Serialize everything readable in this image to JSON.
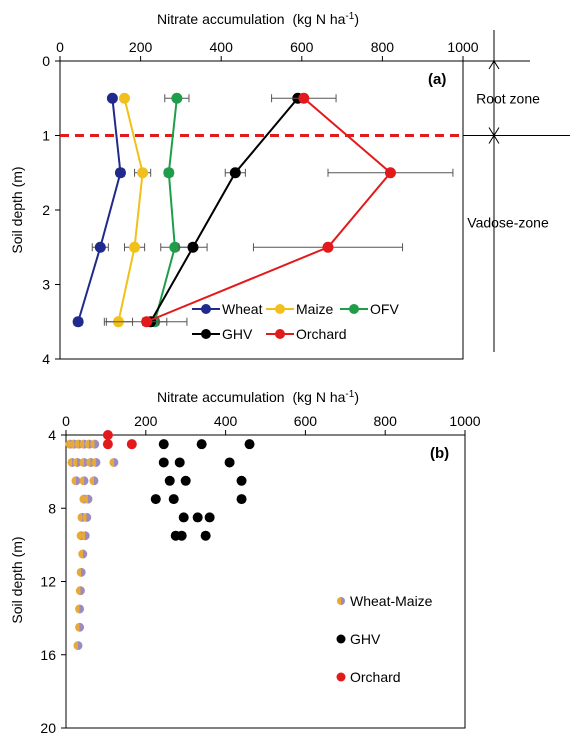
{
  "chart_data": [
    {
      "type": "line",
      "panel_label": "(a)",
      "xlabel": "Nitrate accumulation",
      "xlabel_unit": "(kg N ha",
      "xlabel_sup": "-1",
      "xlabel_close": ")",
      "ylabel": "Soil depth (m)",
      "xlim": [
        0,
        1000
      ],
      "ylim": [
        0,
        4
      ],
      "y_reversed": true,
      "x_axis_position": "top",
      "x_ticks": [
        0,
        200,
        400,
        600,
        800,
        1000
      ],
      "y_ticks": [
        0,
        1,
        2,
        3,
        4
      ],
      "threshold_depth": 1,
      "zones": [
        {
          "label": "Root zone",
          "from": 0,
          "to": 1
        },
        {
          "label": "Vadose-zone",
          "from": 1,
          "to": 4
        }
      ],
      "series": [
        {
          "name": "Wheat",
          "color": "#1f2a8c",
          "x": [
            130,
            150,
            100,
            45
          ],
          "y": [
            0.5,
            1.5,
            2.5,
            3.5
          ],
          "err": [
            0,
            10,
            20,
            10
          ]
        },
        {
          "name": "Maize",
          "color": "#f2c01a",
          "x": [
            160,
            205,
            185,
            145
          ],
          "y": [
            0.5,
            1.5,
            2.5,
            3.5
          ],
          "err": [
            0,
            20,
            25,
            35
          ]
        },
        {
          "name": "OFV",
          "color": "#1f9e4a",
          "x": [
            290,
            270,
            285,
            235
          ],
          "y": [
            0.5,
            1.5,
            2.5,
            3.5
          ],
          "err": [
            30,
            10,
            35,
            30
          ]
        },
        {
          "name": "GHV",
          "color": "#000000",
          "x": [
            590,
            435,
            330,
            225
          ],
          "y": [
            0.5,
            1.5,
            2.5,
            3.5
          ],
          "err": [
            0,
            25,
            35,
            20
          ]
        },
        {
          "name": "Orchard",
          "color": "#e31a1c",
          "x": [
            605,
            820,
            665,
            215
          ],
          "y": [
            0.5,
            1.5,
            2.5,
            3.5
          ],
          "err": [
            80,
            155,
            185,
            100
          ]
        }
      ]
    },
    {
      "type": "scatter",
      "panel_label": "(b)",
      "xlabel": "Nitrate accumulation",
      "xlabel_unit": "(kg N ha",
      "xlabel_sup": "-1",
      "xlabel_close": ")",
      "ylabel": "Soil depth (m)",
      "xlim": [
        0,
        1000
      ],
      "ylim": [
        4,
        20
      ],
      "y_reversed": true,
      "x_axis_position": "top",
      "x_ticks": [
        0,
        200,
        400,
        600,
        800,
        1000
      ],
      "y_ticks": [
        4,
        8,
        12,
        16,
        20
      ],
      "series": [
        {
          "name": "Wheat-Maize",
          "color": "#9b8bbf",
          "color2": "#e6a93a",
          "points": [
            [
              10,
              4.5
            ],
            [
              20,
              4.5
            ],
            [
              32,
              4.5
            ],
            [
              45,
              4.5
            ],
            [
              58,
              4.5
            ],
            [
              72,
              4.5
            ],
            [
              15,
              5.5
            ],
            [
              28,
              5.5
            ],
            [
              45,
              5.5
            ],
            [
              62,
              5.5
            ],
            [
              75,
              5.5
            ],
            [
              120,
              5.5
            ],
            [
              25,
              6.5
            ],
            [
              45,
              6.5
            ],
            [
              70,
              6.5
            ],
            [
              45,
              7.5
            ],
            [
              55,
              7.5
            ],
            [
              40,
              8.5
            ],
            [
              52,
              8.5
            ],
            [
              38,
              9.5
            ],
            [
              48,
              9.5
            ],
            [
              42,
              10.5
            ],
            [
              38,
              11.5
            ],
            [
              36,
              12.5
            ],
            [
              34,
              13.5
            ],
            [
              34,
              14.5
            ],
            [
              30,
              15.5
            ]
          ]
        },
        {
          "name": "GHV",
          "color": "#000000",
          "points": [
            [
              245,
              4.5
            ],
            [
              340,
              4.5
            ],
            [
              460,
              4.5
            ],
            [
              245,
              5.5
            ],
            [
              285,
              5.5
            ],
            [
              410,
              5.5
            ],
            [
              260,
              6.5
            ],
            [
              300,
              6.5
            ],
            [
              440,
              6.5
            ],
            [
              225,
              7.5
            ],
            [
              270,
              7.5
            ],
            [
              440,
              7.5
            ],
            [
              295,
              8.5
            ],
            [
              330,
              8.5
            ],
            [
              360,
              8.5
            ],
            [
              275,
              9.5
            ],
            [
              290,
              9.5
            ],
            [
              350,
              9.5
            ]
          ]
        },
        {
          "name": "Orchard",
          "color": "#e31a1c",
          "points": [
            [
              105,
              4.0
            ],
            [
              105,
              4.5
            ],
            [
              165,
              4.5
            ]
          ]
        }
      ]
    }
  ]
}
